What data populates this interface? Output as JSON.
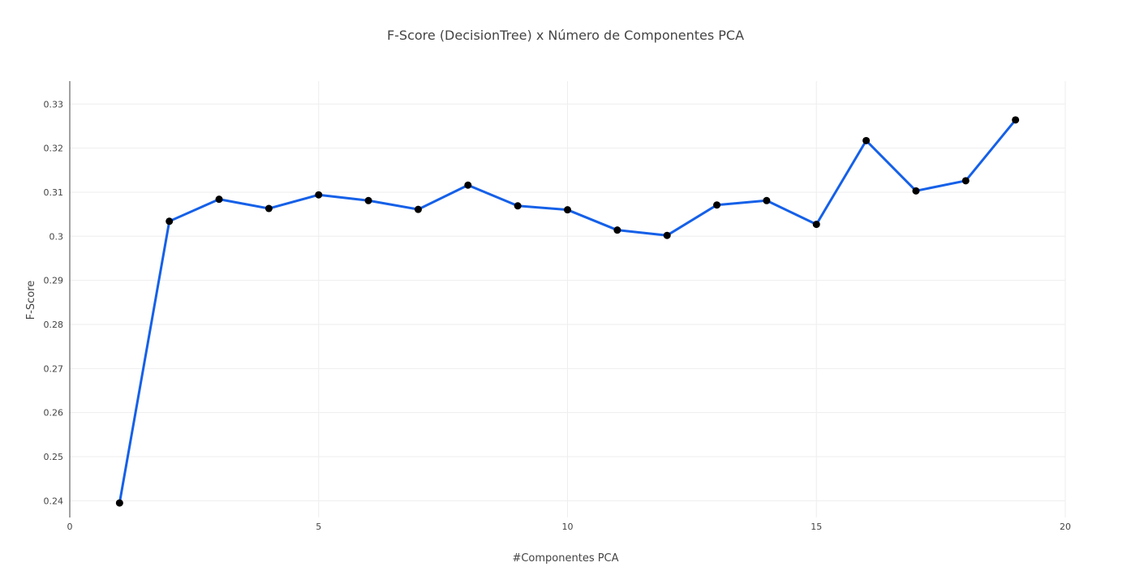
{
  "chart_data": {
    "type": "line",
    "title": "F-Score (DecisionTree) x Número de Componentes PCA",
    "xlabel": "#Componentes PCA",
    "ylabel": "F-Score",
    "xlim": [
      0,
      20
    ],
    "ylim": [
      0.2362,
      0.3352
    ],
    "xticks": [
      0,
      5,
      10,
      15,
      20
    ],
    "xtick_labels": [
      "0",
      "5",
      "10",
      "15",
      "20"
    ],
    "yticks": [
      0.24,
      0.25,
      0.26,
      0.27,
      0.28,
      0.29,
      0.3,
      0.31,
      0.32,
      0.33
    ],
    "ytick_labels": [
      "0.24",
      "0.25",
      "0.26",
      "0.27",
      "0.28",
      "0.29",
      "0.3",
      "0.31",
      "0.32",
      "0.33"
    ],
    "grid": true,
    "series": [
      {
        "x": [
          1,
          2,
          3,
          4,
          5,
          6,
          7,
          8,
          9,
          10,
          11,
          12,
          13,
          14,
          15,
          16,
          17,
          18,
          19
        ],
        "y": [
          0.2395,
          0.3034,
          0.3084,
          0.3063,
          0.3094,
          0.3081,
          0.3061,
          0.3116,
          0.3069,
          0.306,
          0.3014,
          0.3002,
          0.3071,
          0.3081,
          0.3027,
          0.3217,
          0.3103,
          0.3126,
          0.3264
        ],
        "line_color": "#1560e8",
        "marker_color": "#000000"
      }
    ]
  }
}
